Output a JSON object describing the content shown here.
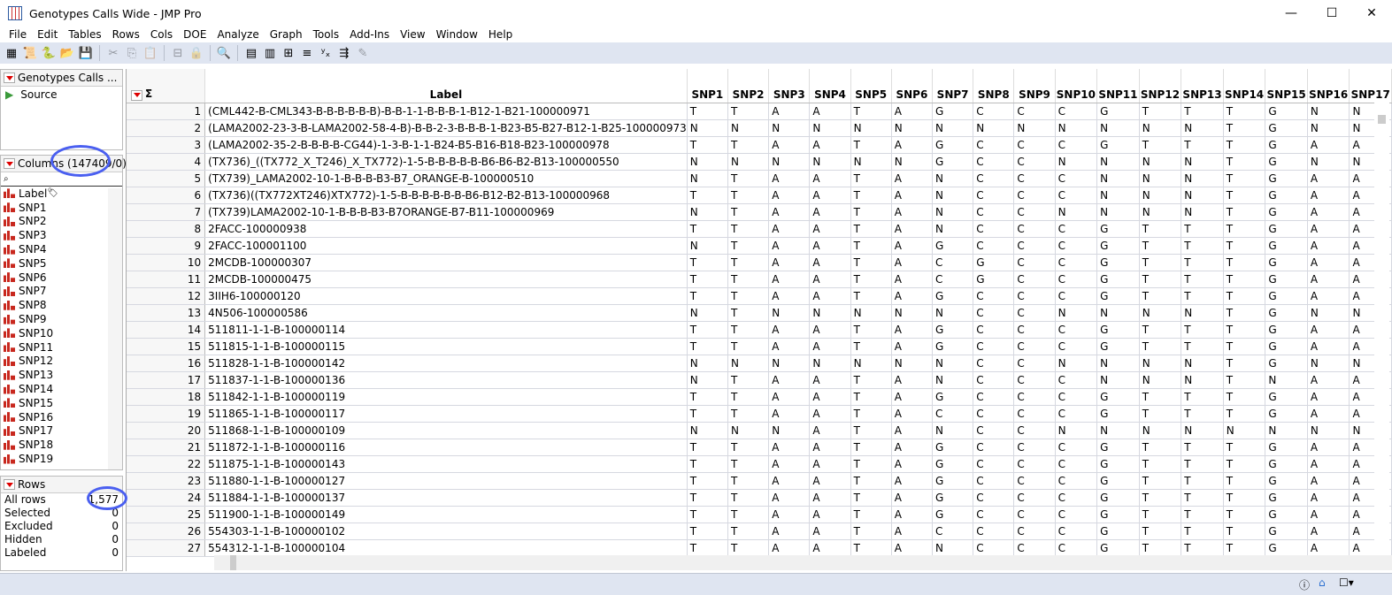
{
  "window": {
    "title": "Genotypes Calls Wide - JMP Pro",
    "minimize": "—",
    "maximize": "☐",
    "close": "✕"
  },
  "menu": [
    "File",
    "Edit",
    "Tables",
    "Rows",
    "Cols",
    "DOE",
    "Analyze",
    "Graph",
    "Tools",
    "Add-Ins",
    "View",
    "Window",
    "Help"
  ],
  "toolbar": {
    "icons": [
      "new-data-table-icon",
      "new-script-icon",
      "python-icon",
      "open-icon",
      "save-icon",
      "cut-icon",
      "copy-icon",
      "paste-icon",
      "data-filter-icon",
      "lock-icon",
      "search-icon",
      "data-table-icon",
      "summary-icon",
      "layout-icon",
      "bar-icon",
      "fit-y-by-x-icon",
      "connect-icon",
      "edit-icon"
    ]
  },
  "tables_panel": {
    "title": "Genotypes Calls ...",
    "items": [
      "Source"
    ]
  },
  "columns_panel": {
    "title": "Columns (147409/0)",
    "search_placeholder": "",
    "items": [
      "Label",
      "SNP1",
      "SNP2",
      "SNP3",
      "SNP4",
      "SNP5",
      "SNP6",
      "SNP7",
      "SNP8",
      "SNP9",
      "SNP10",
      "SNP11",
      "SNP12",
      "SNP13",
      "SNP14",
      "SNP15",
      "SNP16",
      "SNP17",
      "SNP18",
      "SNP19"
    ]
  },
  "rows_panel": {
    "title": "Rows",
    "items": [
      {
        "label": "All rows",
        "value": "1,577"
      },
      {
        "label": "Selected",
        "value": "0"
      },
      {
        "label": "Excluded",
        "value": "0"
      },
      {
        "label": "Hidden",
        "value": "0"
      },
      {
        "label": "Labeled",
        "value": "0"
      }
    ]
  },
  "grid": {
    "columns": [
      "Label",
      "SNP1",
      "SNP2",
      "SNP3",
      "SNP4",
      "SNP5",
      "SNP6",
      "SNP7",
      "SNP8",
      "SNP9",
      "SNP10",
      "SNP11",
      "SNP12",
      "SNP13",
      "SNP14",
      "SNP15",
      "SNP16",
      "SNP17"
    ],
    "rows": [
      [
        "(CML442-B-CML343-B-B-B-B-B-B)-B-B-1-1-B-B-B-1-B12-1-B21-100000971",
        "T",
        "T",
        "A",
        "A",
        "T",
        "A",
        "G",
        "C",
        "C",
        "C",
        "G",
        "T",
        "T",
        "T",
        "G",
        "N",
        "N"
      ],
      [
        "(LAMA2002-23-3-B-LAMA2002-58-4-B)-B-B-2-3-B-B-B-1-B23-B5-B27-B12-1-B25-100000973",
        "N",
        "N",
        "N",
        "N",
        "N",
        "N",
        "N",
        "N",
        "N",
        "N",
        "N",
        "N",
        "N",
        "T",
        "G",
        "N",
        "N"
      ],
      [
        "(LAMA2002-35-2-B-B-B-B-CG44)-1-3-B-1-1-B24-B5-B16-B18-B23-100000978",
        "T",
        "T",
        "A",
        "A",
        "T",
        "A",
        "G",
        "C",
        "C",
        "C",
        "G",
        "T",
        "T",
        "T",
        "G",
        "A",
        "A"
      ],
      [
        "(TX736)_((TX772_X_T246)_X_TX772)-1-5-B-B-B-B-B-B6-B6-B2-B13-100000550",
        "N",
        "N",
        "N",
        "N",
        "N",
        "N",
        "G",
        "C",
        "C",
        "N",
        "N",
        "N",
        "N",
        "T",
        "G",
        "N",
        "N"
      ],
      [
        "(TX739)_LAMA2002-10-1-B-B-B-B3-B7_ORANGE-B-100000510",
        "N",
        "T",
        "A",
        "A",
        "T",
        "A",
        "N",
        "C",
        "C",
        "C",
        "N",
        "N",
        "N",
        "T",
        "G",
        "A",
        "A"
      ],
      [
        "(TX736)((TX772XT246)XTX772)-1-5-B-B-B-B-B-B-B6-B12-B2-B13-100000968",
        "T",
        "T",
        "A",
        "A",
        "T",
        "A",
        "N",
        "C",
        "C",
        "C",
        "N",
        "N",
        "N",
        "T",
        "G",
        "A",
        "A"
      ],
      [
        "(TX739)LAMA2002-10-1-B-B-B-B3-B7ORANGE-B7-B11-100000969",
        "N",
        "T",
        "A",
        "A",
        "T",
        "A",
        "N",
        "C",
        "C",
        "N",
        "N",
        "N",
        "N",
        "T",
        "G",
        "A",
        "A"
      ],
      [
        "2FACC-100000938",
        "T",
        "T",
        "A",
        "A",
        "T",
        "A",
        "N",
        "C",
        "C",
        "C",
        "G",
        "T",
        "T",
        "T",
        "G",
        "A",
        "A"
      ],
      [
        "2FACC-100001100",
        "N",
        "T",
        "A",
        "A",
        "T",
        "A",
        "G",
        "C",
        "C",
        "C",
        "G",
        "T",
        "T",
        "T",
        "G",
        "A",
        "A"
      ],
      [
        "2MCDB-100000307",
        "T",
        "T",
        "A",
        "A",
        "T",
        "A",
        "C",
        "G",
        "C",
        "C",
        "G",
        "T",
        "T",
        "T",
        "G",
        "A",
        "A"
      ],
      [
        "2MCDB-100000475",
        "T",
        "T",
        "A",
        "A",
        "T",
        "A",
        "C",
        "G",
        "C",
        "C",
        "G",
        "T",
        "T",
        "T",
        "G",
        "A",
        "A"
      ],
      [
        "3IIH6-100000120",
        "T",
        "T",
        "A",
        "A",
        "T",
        "A",
        "G",
        "C",
        "C",
        "C",
        "G",
        "T",
        "T",
        "T",
        "G",
        "A",
        "A"
      ],
      [
        "4N506-100000586",
        "N",
        "T",
        "N",
        "N",
        "N",
        "N",
        "N",
        "C",
        "C",
        "N",
        "N",
        "N",
        "N",
        "T",
        "G",
        "N",
        "N"
      ],
      [
        "511811-1-1-B-100000114",
        "T",
        "T",
        "A",
        "A",
        "T",
        "A",
        "G",
        "C",
        "C",
        "C",
        "G",
        "T",
        "T",
        "T",
        "G",
        "A",
        "A"
      ],
      [
        "511815-1-1-B-100000115",
        "T",
        "T",
        "A",
        "A",
        "T",
        "A",
        "G",
        "C",
        "C",
        "C",
        "G",
        "T",
        "T",
        "T",
        "G",
        "A",
        "A"
      ],
      [
        "511828-1-1-B-100000142",
        "N",
        "N",
        "N",
        "N",
        "N",
        "N",
        "N",
        "C",
        "C",
        "N",
        "N",
        "N",
        "N",
        "T",
        "G",
        "N",
        "N"
      ],
      [
        "511837-1-1-B-100000136",
        "N",
        "T",
        "A",
        "A",
        "T",
        "A",
        "N",
        "C",
        "C",
        "C",
        "N",
        "N",
        "N",
        "T",
        "N",
        "A",
        "A"
      ],
      [
        "511842-1-1-B-100000119",
        "T",
        "T",
        "A",
        "A",
        "T",
        "A",
        "G",
        "C",
        "C",
        "C",
        "G",
        "T",
        "T",
        "T",
        "G",
        "A",
        "A"
      ],
      [
        "511865-1-1-B-100000117",
        "T",
        "T",
        "A",
        "A",
        "T",
        "A",
        "C",
        "C",
        "C",
        "C",
        "G",
        "T",
        "T",
        "T",
        "G",
        "A",
        "A"
      ],
      [
        "511868-1-1-B-100000109",
        "N",
        "N",
        "N",
        "A",
        "T",
        "A",
        "N",
        "C",
        "C",
        "N",
        "N",
        "N",
        "N",
        "N",
        "N",
        "N",
        "N"
      ],
      [
        "511872-1-1-B-100000116",
        "T",
        "T",
        "A",
        "A",
        "T",
        "A",
        "G",
        "C",
        "C",
        "C",
        "G",
        "T",
        "T",
        "T",
        "G",
        "A",
        "A"
      ],
      [
        "511875-1-1-B-100000143",
        "T",
        "T",
        "A",
        "A",
        "T",
        "A",
        "G",
        "C",
        "C",
        "C",
        "G",
        "T",
        "T",
        "T",
        "G",
        "A",
        "A"
      ],
      [
        "511880-1-1-B-100000127",
        "T",
        "T",
        "A",
        "A",
        "T",
        "A",
        "G",
        "C",
        "C",
        "C",
        "G",
        "T",
        "T",
        "T",
        "G",
        "A",
        "A"
      ],
      [
        "511884-1-1-B-100000137",
        "T",
        "T",
        "A",
        "A",
        "T",
        "A",
        "G",
        "C",
        "C",
        "C",
        "G",
        "T",
        "T",
        "T",
        "G",
        "A",
        "A"
      ],
      [
        "511900-1-1-B-100000149",
        "T",
        "T",
        "A",
        "A",
        "T",
        "A",
        "G",
        "C",
        "C",
        "C",
        "G",
        "T",
        "T",
        "T",
        "G",
        "A",
        "A"
      ],
      [
        "554303-1-1-B-100000102",
        "T",
        "T",
        "A",
        "A",
        "T",
        "A",
        "C",
        "C",
        "C",
        "C",
        "G",
        "T",
        "T",
        "T",
        "G",
        "A",
        "A"
      ],
      [
        "554312-1-1-B-100000104",
        "T",
        "T",
        "A",
        "A",
        "T",
        "A",
        "N",
        "C",
        "C",
        "C",
        "G",
        "T",
        "T",
        "T",
        "G",
        "A",
        "A"
      ]
    ]
  },
  "colors": {
    "accent_red": "#d00000",
    "annotation_circle": "#4a5ff0",
    "toolbar_bg": "#dfe5f1"
  }
}
